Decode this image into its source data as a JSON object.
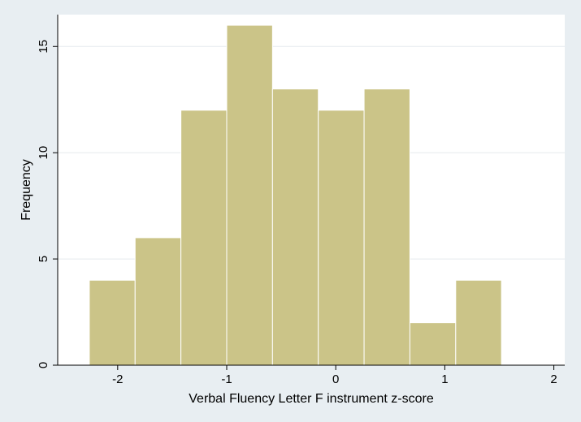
{
  "chart_data": {
    "type": "bar",
    "title": "",
    "xlabel": "Verbal Fluency Letter F instrument z-score",
    "ylabel": "Frequency",
    "xlim": [
      -2.55,
      2.1
    ],
    "ylim": [
      0,
      16.5
    ],
    "xticks": [
      -2,
      -1,
      0,
      1,
      2
    ],
    "xtick_labels": [
      "-2",
      "-1",
      "0",
      "1",
      "2"
    ],
    "yticks": [
      0,
      5,
      10,
      15
    ],
    "ytick_labels": [
      "0",
      "5",
      "10",
      "15"
    ],
    "grid": true,
    "bins": [
      {
        "x0": -2.26,
        "x1": -1.84,
        "value": 4
      },
      {
        "x0": -1.84,
        "x1": -1.42,
        "value": 6
      },
      {
        "x0": -1.42,
        "x1": -1.0,
        "value": 12
      },
      {
        "x0": -1.0,
        "x1": -0.58,
        "value": 16
      },
      {
        "x0": -0.58,
        "x1": -0.16,
        "value": 13
      },
      {
        "x0": -0.16,
        "x1": 0.26,
        "value": 12
      },
      {
        "x0": 0.26,
        "x1": 0.68,
        "value": 13
      },
      {
        "x0": 0.68,
        "x1": 1.1,
        "value": 2
      },
      {
        "x0": 1.1,
        "x1": 1.52,
        "value": 4
      }
    ],
    "colors": {
      "bar_fill": "#cbc488",
      "bar_stroke": "#ffffff",
      "plot_bg": "#ffffff",
      "outer_bg": "#e8eef2",
      "grid": "#e5eaee",
      "axis": "#000000"
    }
  }
}
